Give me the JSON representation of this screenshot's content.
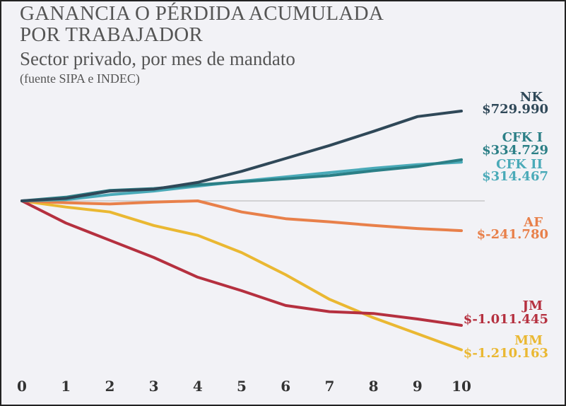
{
  "header": {
    "title_line1": "GANANCIA O PÉRDIDA ACUMULADA",
    "title_line2": "POR TRABAJADOR",
    "subtitle": "Sector privado, por mes de mandato",
    "source": "(fuente SIPA e INDEC)"
  },
  "colors": {
    "background": "#f2f2f6",
    "zero_line": "#c8c8c8",
    "NK": "#2f4858",
    "CFK I": "#2b7f86",
    "CFK II": "#4aaab8",
    "AF": "#e8804a",
    "JM": "#b5303f",
    "MM": "#eab832"
  },
  "chart_data": {
    "type": "line",
    "title": "GANANCIA O PÉRDIDA ACUMULADA POR TRABAJADOR",
    "subtitle": "Sector privado, por mes de mandato",
    "x": [
      0,
      1,
      2,
      3,
      4,
      5,
      6,
      7,
      8,
      9,
      10
    ],
    "x_tick_labels": [
      "0",
      "1",
      "2",
      "3",
      "4",
      "5",
      "6",
      "7",
      "8",
      "9",
      "10"
    ],
    "xlim": [
      0,
      10
    ],
    "ylim": [
      -1300000,
      1000000
    ],
    "grid": false,
    "zero_line": true,
    "series": [
      {
        "name": "NK",
        "value_label": "$729.990",
        "color": "#2f4858",
        "values": [
          0,
          20000,
          80000,
          95000,
          150000,
          240000,
          345000,
          450000,
          565000,
          685000,
          729990
        ]
      },
      {
        "name": "CFK I",
        "value_label": "$334.729",
        "color": "#2b7f86",
        "values": [
          0,
          30000,
          85000,
          100000,
          130000,
          155000,
          180000,
          205000,
          245000,
          280000,
          334729
        ]
      },
      {
        "name": "CFK II",
        "value_label": "$314.467",
        "color": "#4aaab8",
        "values": [
          0,
          10000,
          50000,
          80000,
          120000,
          160000,
          195000,
          230000,
          265000,
          295000,
          314467
        ]
      },
      {
        "name": "AF",
        "value_label": "$-241.780",
        "color": "#e8804a",
        "values": [
          0,
          -15000,
          -25000,
          -10000,
          0,
          -90000,
          -145000,
          -170000,
          -200000,
          -225000,
          -241780
        ]
      },
      {
        "name": "JM",
        "value_label": "$-1.011.445",
        "color": "#b5303f",
        "values": [
          0,
          -180000,
          -320000,
          -460000,
          -620000,
          -730000,
          -850000,
          -900000,
          -915000,
          -960000,
          -1011445
        ]
      },
      {
        "name": "MM",
        "value_label": "$-1.210.163",
        "color": "#eab832",
        "values": [
          0,
          -50000,
          -90000,
          -200000,
          -280000,
          -420000,
          -600000,
          -800000,
          -950000,
          -1080000,
          -1210163
        ]
      }
    ]
  }
}
